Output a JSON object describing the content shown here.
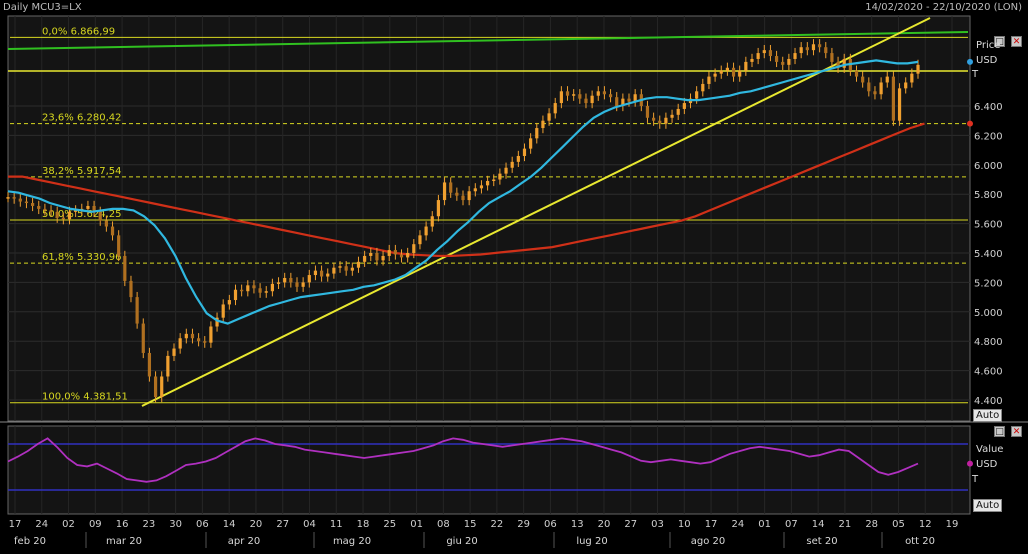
{
  "header": {
    "title": "Daily MCU3=LX",
    "date_range": "14/02/2020 - 22/10/2020 (LON)"
  },
  "price_panel": {
    "label": "Price",
    "currency": "USD",
    "t_label": "T",
    "auto_label": "Auto"
  },
  "indicator_panel": {
    "label": "Value",
    "currency": "USD",
    "t_label": "T",
    "auto_label": "Auto"
  },
  "colors": {
    "candle": "#f0a030",
    "sma_short": "#30b8e0",
    "sma_long": "#d03018",
    "trend_green": "#30c020",
    "trend_yellow": "#e8e830",
    "fib": "#d8d820",
    "oscillator": "#b030c0",
    "osc_band": "#3030c0",
    "price_dot": "#30a0e0",
    "long_dot": "#e03020",
    "osc_dot": "#c020a0"
  },
  "chart_data": [
    {
      "type": "candlestick",
      "title": "Daily MCU3=LX",
      "ylabel": "Price USD",
      "ylim": [
        4300,
        7000
      ],
      "y_ticks": [
        "6.400",
        "6.200",
        "6.000",
        "5.800",
        "5.600",
        "5.400",
        "5.200",
        "5.000",
        "4.800",
        "4.600",
        "4.400"
      ],
      "y_tick_values": [
        6400,
        6200,
        6000,
        5800,
        5600,
        5400,
        5200,
        5000,
        4800,
        4600,
        4400
      ],
      "x_ticks": [
        "17",
        "24",
        "02",
        "09",
        "16",
        "23",
        "30",
        "06",
        "14",
        "20",
        "27",
        "04",
        "11",
        "18",
        "25",
        "01",
        "08",
        "15",
        "22",
        "29",
        "06",
        "13",
        "20",
        "27",
        "03",
        "10",
        "17",
        "24",
        "01",
        "07",
        "14",
        "21",
        "28",
        "05",
        "12",
        "19"
      ],
      "months": [
        "feb 20",
        "mar 20",
        "apr 20",
        "mag 20",
        "giu 20",
        "lug 20",
        "ago 20",
        "set 20",
        "ott 20"
      ],
      "close": [
        5780,
        5770,
        5750,
        5740,
        5720,
        5700,
        5690,
        5680,
        5640,
        5630,
        5680,
        5690,
        5700,
        5720,
        5680,
        5620,
        5580,
        5520,
        5380,
        5210,
        5100,
        4920,
        4720,
        4560,
        4420,
        4560,
        4700,
        4750,
        4820,
        4850,
        4820,
        4800,
        4790,
        4900,
        4960,
        5050,
        5080,
        5150,
        5140,
        5180,
        5160,
        5130,
        5140,
        5190,
        5200,
        5230,
        5200,
        5170,
        5200,
        5250,
        5280,
        5240,
        5260,
        5300,
        5310,
        5280,
        5300,
        5340,
        5380,
        5400,
        5350,
        5380,
        5420,
        5390,
        5370,
        5400,
        5460,
        5520,
        5580,
        5650,
        5760,
        5880,
        5810,
        5790,
        5760,
        5820,
        5840,
        5860,
        5890,
        5900,
        5940,
        5980,
        6020,
        6060,
        6110,
        6180,
        6250,
        6300,
        6350,
        6420,
        6500,
        6470,
        6480,
        6450,
        6420,
        6470,
        6500,
        6480,
        6460,
        6400,
        6450,
        6430,
        6480,
        6400,
        6320,
        6300,
        6280,
        6320,
        6340,
        6380,
        6420,
        6450,
        6500,
        6550,
        6600,
        6620,
        6640,
        6660,
        6600,
        6640,
        6700,
        6720,
        6760,
        6780,
        6740,
        6700,
        6680,
        6720,
        6760,
        6800,
        6780,
        6820,
        6800,
        6760,
        6700,
        6660,
        6720,
        6640,
        6600,
        6560,
        6500,
        6480,
        6560,
        6600,
        6300,
        6520,
        6560,
        6620,
        6680
      ],
      "series": [
        {
          "name": "",
          "values": [
            5820,
            5810,
            5790,
            5770,
            5740,
            5720,
            5700,
            5690,
            5680,
            5690,
            5700,
            5700,
            5690,
            5650,
            5590,
            5500,
            5380,
            5230,
            5100,
            4990,
            4940,
            4920,
            4950,
            4980,
            5010,
            5040,
            5060,
            5080,
            5100,
            5110,
            5120,
            5130,
            5140,
            5150,
            5170,
            5180,
            5200,
            5220,
            5250,
            5300,
            5350,
            5420,
            5480,
            5550,
            5610,
            5680,
            5740,
            5780,
            5820,
            5870,
            5920,
            5980,
            6050,
            6120,
            6190,
            6260,
            6320,
            6360,
            6390,
            6410,
            6430,
            6450,
            6460,
            6460,
            6450,
            6440,
            6440,
            6450,
            6460,
            6470,
            6490,
            6500,
            6520,
            6540,
            6560,
            6580,
            6600,
            6620,
            6640,
            6660,
            6680,
            6690,
            6700,
            6710,
            6700,
            6690,
            6690,
            6700
          ]
        },
        {
          "name": "",
          "values": [
            5920,
            5920,
            5900,
            5880,
            5860,
            5840,
            5820,
            5800,
            5780,
            5760,
            5740,
            5720,
            5700,
            5680,
            5660,
            5640,
            5620,
            5600,
            5580,
            5560,
            5540,
            5520,
            5500,
            5480,
            5460,
            5440,
            5420,
            5400,
            5390,
            5385,
            5380,
            5380,
            5385,
            5390,
            5400,
            5410,
            5420,
            5430,
            5440,
            5460,
            5480,
            5500,
            5520,
            5540,
            5560,
            5580,
            5600,
            5620,
            5650,
            5690,
            5730,
            5770,
            5810,
            5850,
            5890,
            5930,
            5970,
            6010,
            6050,
            6090,
            6130,
            6170,
            6210,
            6250,
            6280
          ]
        }
      ],
      "fibonacci": [
        {
          "label": "0,0%",
          "value": "6.866,99",
          "level": 6866.99
        },
        {
          "label": "23,6%",
          "value": "6.280,42",
          "level": 6280.42
        },
        {
          "label": "38,2%",
          "value": "5.917,54",
          "level": 5917.54
        },
        {
          "label": "50,0%",
          "value": "5.624,25",
          "level": 5624.25
        },
        {
          "label": "61,8%",
          "value": "5.330,96",
          "level": 5330.96
        },
        {
          "label": "100,0%",
          "value": "4.381,51",
          "level": 4381.51
        }
      ]
    },
    {
      "type": "line",
      "ylabel": "Value USD",
      "series": [
        {
          "name": "",
          "values": [
            55,
            62,
            70,
            80,
            88,
            75,
            60,
            50,
            48,
            52,
            45,
            38,
            30,
            28,
            26,
            28,
            34,
            42,
            50,
            52,
            55,
            60,
            68,
            76,
            84,
            88,
            85,
            80,
            78,
            76,
            72,
            70,
            68,
            66,
            64,
            62,
            60,
            62,
            64,
            66,
            68,
            70,
            74,
            78,
            84,
            88,
            86,
            82,
            80,
            78,
            76,
            78,
            80,
            82,
            84,
            86,
            88,
            86,
            84,
            80,
            76,
            72,
            68,
            62,
            56,
            54,
            56,
            58,
            56,
            54,
            52,
            54,
            60,
            66,
            70,
            74,
            76,
            74,
            72,
            70,
            66,
            62,
            64,
            68,
            72,
            70,
            60,
            50,
            40,
            36,
            40,
            46,
            52
          ]
        }
      ]
    }
  ]
}
